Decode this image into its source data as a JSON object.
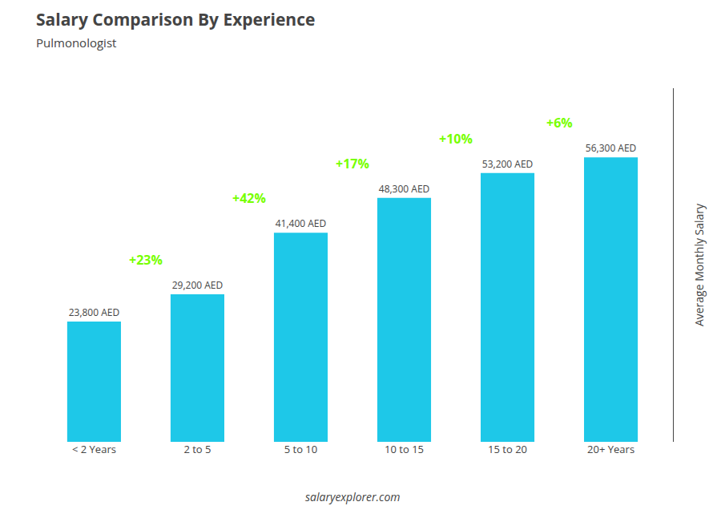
{
  "chart_data": {
    "type": "bar",
    "title": "Salary Comparison By Experience",
    "subtitle": "Pulmonologist",
    "ylabel": "Average Monthly Salary",
    "categories": [
      "< 2 Years",
      "2 to 5",
      "5 to 10",
      "10 to 15",
      "15 to 20",
      "20+ Years"
    ],
    "values": [
      23800,
      29200,
      41400,
      48300,
      53200,
      56300
    ],
    "value_labels": [
      "23,800 AED",
      "29,200 AED",
      "41,400 AED",
      "48,300 AED",
      "53,200 AED",
      "56,300 AED"
    ],
    "color": "#1EC8E8",
    "ylim": [
      0,
      70000
    ],
    "grid": false,
    "data_labels": true,
    "tick_labels": "x",
    "annotations": [
      {
        "text": "+23%",
        "category": "2 to 5",
        "color": "#77FF00"
      },
      {
        "text": "+42%",
        "category": "5 to 10",
        "color": "#77FF00"
      },
      {
        "text": "+17%",
        "category": "10 to 15",
        "color": "#77FF00"
      },
      {
        "text": "+10%",
        "category": "15 to 20",
        "color": "#77FF00"
      },
      {
        "text": "+6%",
        "category": "20+ Years",
        "color": "#77FF00"
      },
      {
        "text": "salaryexplorer.com"
      }
    ]
  }
}
